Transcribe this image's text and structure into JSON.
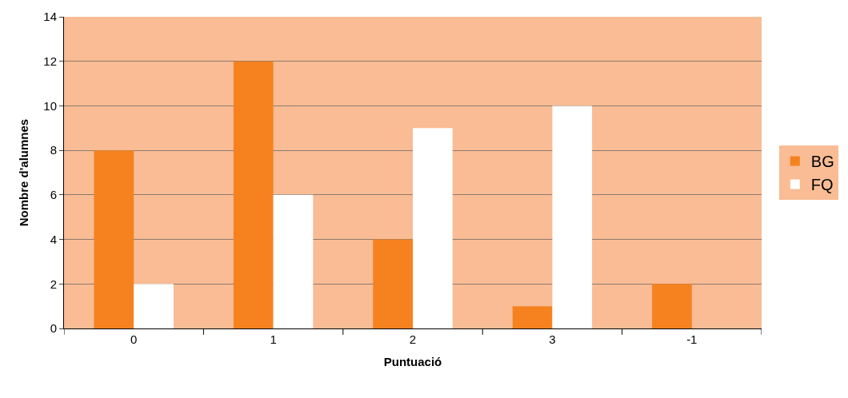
{
  "chart_data": {
    "type": "bar",
    "xlabel": "Puntuació",
    "ylabel": "Nombre d'alumnes",
    "categories": [
      "0",
      "1",
      "2",
      "3",
      "-1"
    ],
    "series": [
      {
        "name": "BG",
        "color": "#f5821f",
        "values": [
          8,
          12,
          4,
          1,
          2
        ]
      },
      {
        "name": "FQ",
        "color": "#ffffff",
        "values": [
          2,
          6,
          9,
          10,
          0
        ]
      }
    ],
    "ylim": [
      0,
      14
    ],
    "yticks": [
      0,
      2,
      4,
      6,
      8,
      10,
      12,
      14
    ],
    "grid": "y",
    "legend": "right"
  }
}
